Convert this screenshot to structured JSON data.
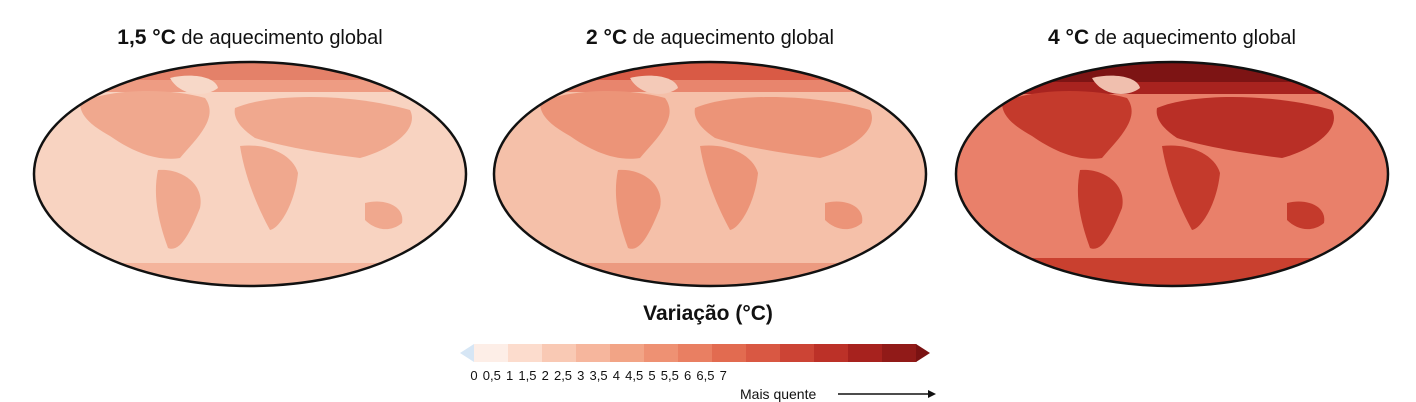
{
  "panels": [
    {
      "bold": "1,5 °C",
      "rest": " de aquecimento global",
      "warming": 1.5
    },
    {
      "bold": "2 °C",
      "rest": " de aquecimento global",
      "warming": 2
    },
    {
      "bold": "4 °C",
      "rest": " de aquecimento global",
      "warming": 4
    }
  ],
  "legend": {
    "title": "Variação (°C)",
    "ticks": [
      "0",
      "0,5",
      "1",
      "1,5",
      "2",
      "2,5",
      "3",
      "3,5",
      "4",
      "4,5",
      "5",
      "5,5",
      "6",
      "6,5",
      "7"
    ],
    "warmer_label": "Mais quente",
    "colors": [
      "#d6e6f5",
      "#fdeee7",
      "#fcdccd",
      "#f9c9b4",
      "#f6b69d",
      "#f2a486",
      "#ee9173",
      "#e97f62",
      "#e26b50",
      "#d95843",
      "#cc4435",
      "#bc3128",
      "#a7221e",
      "#911a18",
      "#7a1212"
    ]
  }
}
